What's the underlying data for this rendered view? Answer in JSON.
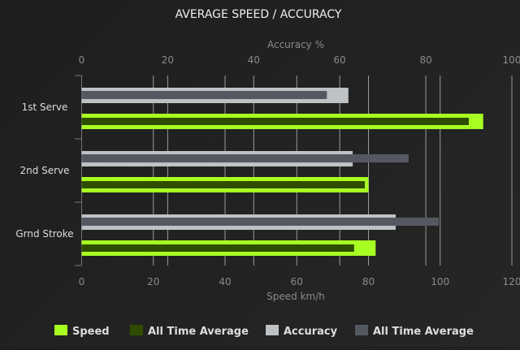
{
  "chart_data": {
    "type": "bar",
    "orientation": "horizontal",
    "title": "AVERAGE SPEED / ACCURACY",
    "categories": [
      "1st Serve",
      "2nd Serve",
      "Grnd Stroke"
    ],
    "x_bottom": {
      "label": "Speed km/h",
      "range": [
        0,
        120
      ],
      "ticks": [
        0,
        20,
        40,
        60,
        80,
        100,
        120
      ]
    },
    "x_top": {
      "label": "Accuracy %",
      "range": [
        0,
        100
      ],
      "ticks": [
        0,
        20,
        40,
        60,
        80,
        100
      ]
    },
    "grid": true,
    "legend_position": "bottom",
    "series": [
      {
        "name": "Speed",
        "axis": "bottom",
        "color": "#a8ff22",
        "values": [
          112,
          80,
          82
        ]
      },
      {
        "name": "All Time Average",
        "axis": "bottom",
        "color": "#2f4d00",
        "values": [
          108,
          79,
          76
        ]
      },
      {
        "name": "Accuracy",
        "axis": "top",
        "color": "#bec2c5",
        "values": [
          62,
          63,
          73
        ]
      },
      {
        "name": "All Time Average",
        "axis": "top",
        "color": "#545961",
        "values": [
          57,
          76,
          83
        ]
      }
    ]
  }
}
